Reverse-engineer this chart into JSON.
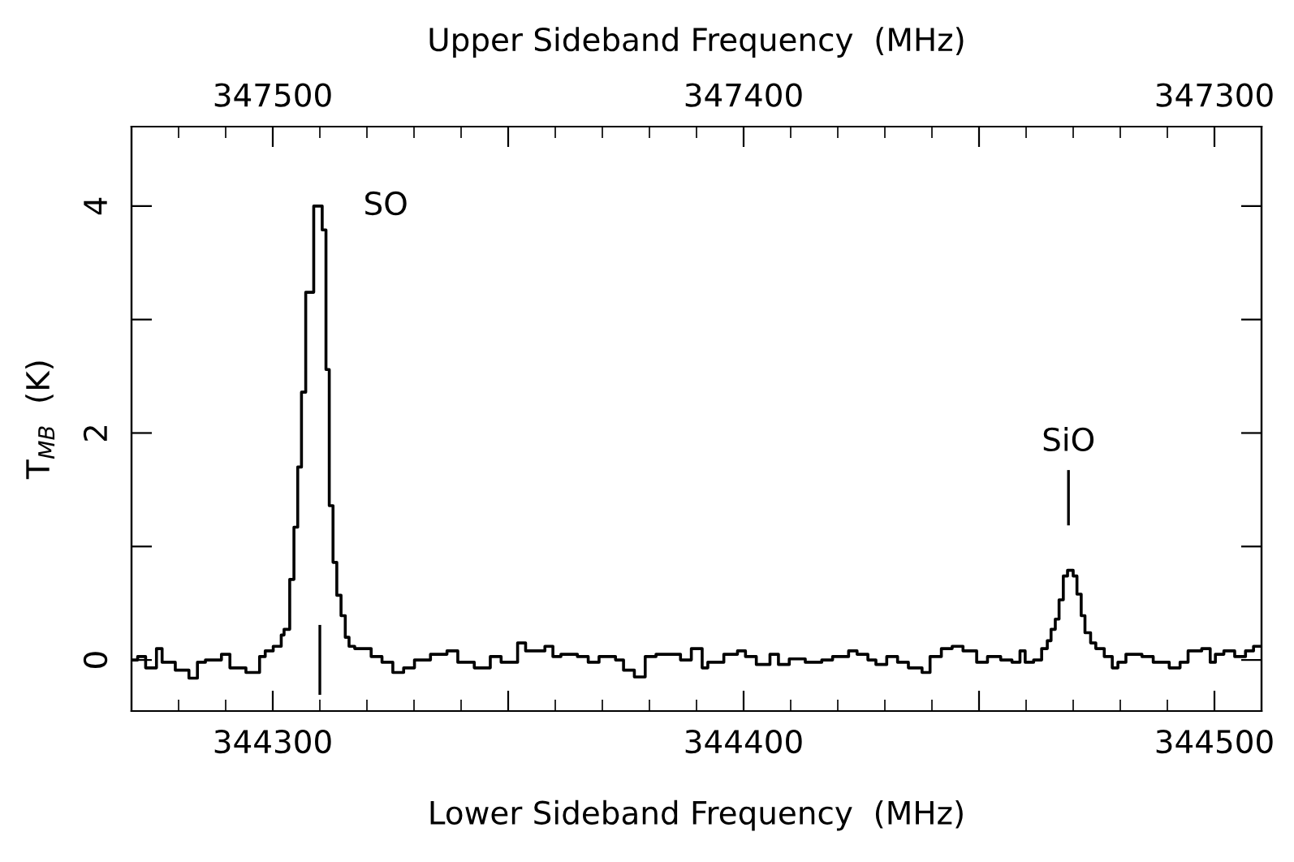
{
  "chart_data": {
    "type": "step",
    "xlabel": "Lower Sideband Frequency  (MHz)",
    "x2label": "Upper Sideband Frequency  (MHz)",
    "ylabel": "T$_{MB}$  (K)",
    "xlim": [
      344270,
      344510
    ],
    "xticks": [
      344300,
      {
        "value": 344350,
        "label": null
      },
      344400,
      {
        "value": 344450,
        "label": null
      },
      344500
    ],
    "x2lim": [
      347530,
      347290
    ],
    "x2ticks": [
      347500,
      {
        "value": 347450,
        "label": null
      },
      347400,
      {
        "value": 347350,
        "label": null
      },
      347300
    ],
    "ylim": [
      -0.45,
      4.7
    ],
    "yticks": [
      0,
      {
        "value": 1,
        "label": null
      },
      2,
      {
        "value": 3,
        "label": null
      },
      4
    ],
    "grid": false,
    "legend": false,
    "marker": "none",
    "line_style": "solid",
    "annotations": [
      "SO"
    ],
    "ref_lines": [
      {
        "axis": "x",
        "value": 344310,
        "label": null,
        "color": "#000000",
        "line_style": "solid"
      },
      {
        "axis": "x",
        "value": 344469,
        "label": "SiO",
        "color": "#000000",
        "line_style": "solid"
      }
    ],
    "series": [
      {
        "color": "#000000",
        "x": [
          344270.0,
          344271.3,
          344273.0,
          344275.3,
          344276.5,
          344279.3,
          344282.2,
          344284.0,
          344285.7,
          344289.1,
          344290.9,
          344294.3,
          344297.2,
          344298.4,
          344300.1,
          344301.8,
          344302.4,
          344303.6,
          344304.5,
          344305.3,
          344306.1,
          344307.0,
          344308.7,
          344310.5,
          344311.3,
          344312.0,
          344312.8,
          344313.6,
          344314.5,
          344315.4,
          344316.2,
          344317.4,
          344320.9,
          344323.2,
          344325.5,
          344327.8,
          344330.1,
          344333.5,
          344337.0,
          344339.3,
          344342.8,
          344346.2,
          344348.5,
          344352.0,
          344353.7,
          344357.8,
          344359.5,
          344361.2,
          344364.7,
          344367.0,
          344369.3,
          344372.8,
          344374.5,
          344376.8,
          344379.1,
          344381.4,
          344386.6,
          344388.9,
          344391.2,
          344392.4,
          344395.8,
          344398.7,
          344400.4,
          344402.7,
          344405.6,
          344407.4,
          344409.7,
          344413.1,
          344416.6,
          344418.9,
          344422.3,
          344424.1,
          344426.4,
          344428.1,
          344430.4,
          344432.7,
          344435.0,
          344437.9,
          344439.6,
          344442.0,
          344444.3,
          344446.6,
          344449.5,
          344451.8,
          344454.6,
          344457.0,
          344458.7,
          344459.8,
          344461.6,
          344463.3,
          344464.5,
          344465.3,
          344466.2,
          344467.0,
          344467.9,
          344468.8,
          344470.0,
          344470.8,
          344471.7,
          344472.5,
          344473.7,
          344474.8,
          344476.6,
          344478.3,
          344479.5,
          344481.2,
          344484.6,
          344487.0,
          344490.4,
          344492.7,
          344494.4,
          344497.3,
          344499.1,
          344500.2,
          344502.0,
          344504.3,
          344506.6,
          344508.3,
          344510.0
        ],
        "values": [
          0.0,
          0.03,
          -0.07,
          0.1,
          -0.02,
          -0.09,
          -0.16,
          -0.02,
          0.0,
          0.05,
          -0.07,
          -0.11,
          0.03,
          0.08,
          0.12,
          0.22,
          0.27,
          0.71,
          1.17,
          1.7,
          2.36,
          3.24,
          4.0,
          3.79,
          2.56,
          1.36,
          0.86,
          0.57,
          0.39,
          0.2,
          0.12,
          0.1,
          0.03,
          -0.02,
          -0.11,
          -0.07,
          0.0,
          0.05,
          0.08,
          -0.02,
          -0.07,
          0.03,
          -0.02,
          0.15,
          0.08,
          0.12,
          0.03,
          0.05,
          0.03,
          -0.02,
          0.03,
          0.0,
          -0.09,
          -0.15,
          0.03,
          0.05,
          0.0,
          0.1,
          -0.07,
          -0.02,
          0.05,
          0.08,
          0.03,
          -0.04,
          0.05,
          -0.04,
          0.01,
          -0.02,
          0.0,
          0.03,
          0.08,
          0.05,
          0.0,
          -0.04,
          0.03,
          -0.02,
          -0.07,
          -0.11,
          0.03,
          0.1,
          0.12,
          0.08,
          -0.02,
          0.03,
          0.0,
          -0.02,
          0.08,
          -0.02,
          0.0,
          0.1,
          0.17,
          0.27,
          0.36,
          0.53,
          0.74,
          0.79,
          0.74,
          0.58,
          0.39,
          0.24,
          0.15,
          0.1,
          0.03,
          -0.07,
          -0.02,
          0.05,
          0.03,
          -0.02,
          -0.07,
          -0.02,
          0.08,
          0.1,
          -0.02,
          0.05,
          0.08,
          0.03,
          0.08,
          0.12,
          0.12
        ]
      }
    ]
  }
}
